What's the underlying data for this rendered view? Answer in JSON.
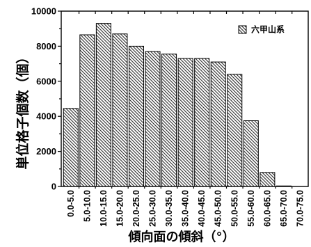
{
  "chart_data": {
    "type": "bar",
    "categories": [
      "0.0-5.0",
      "5.0-10.0",
      "10.0-15.0",
      "15.0-20.0",
      "20.0-25.0",
      "25.0-30.0",
      "30.0-35.0",
      "35.0-40.0",
      "40.0-45.0",
      "45.0-50.0",
      "50.0-55.0",
      "55.0-60.0",
      "60.0-65.0",
      "65.0-70.0",
      "70.0-75.0"
    ],
    "series": [
      {
        "name": "六甲山系",
        "values": [
          4450,
          8650,
          9300,
          8700,
          8000,
          7700,
          7550,
          7300,
          7300,
          7100,
          6400,
          3750,
          800,
          30,
          0
        ]
      }
    ],
    "xlabel": "傾向面の傾斜（°）",
    "ylabel": "単位格子個数（個）",
    "ylim": [
      0,
      10000
    ],
    "yticks": [
      0,
      2000,
      4000,
      6000,
      8000,
      10000
    ],
    "grid": false,
    "legend": {
      "position": "top-right"
    },
    "colors": {
      "foreground": "#000000",
      "background": "#ffffff"
    }
  }
}
